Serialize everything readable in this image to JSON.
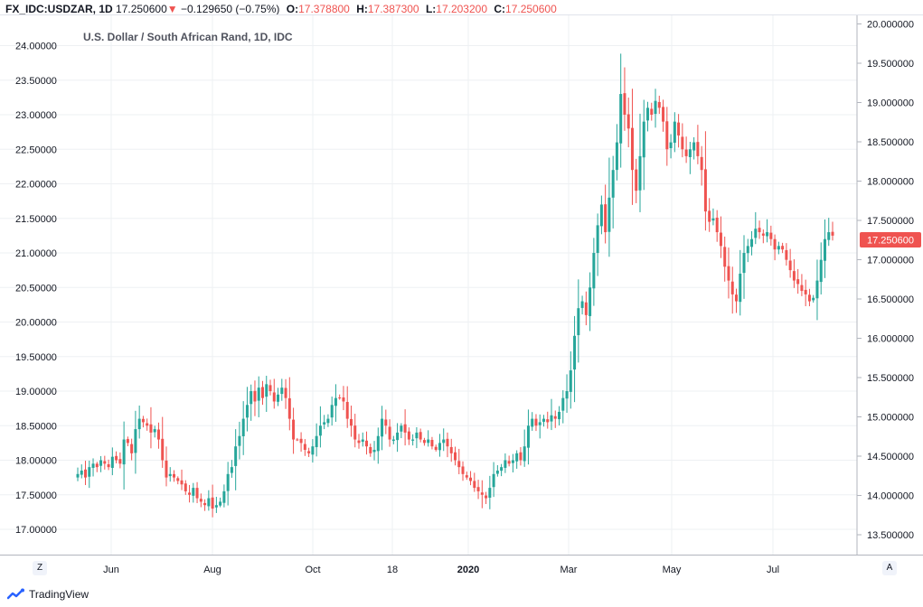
{
  "header": {
    "symbol": "FX_IDC:USDZAR, 1D",
    "last": "17.250600",
    "arrow": "▼",
    "change": "−0.129650 (−0.75%)",
    "o_label": "O:",
    "o_value": "17.378800",
    "h_label": "H:",
    "h_value": "17.387300",
    "l_label": "L:",
    "l_value": "17.203200",
    "c_label": "C:",
    "c_value": "17.250600"
  },
  "chart_title": "U.S. Dollar / South African Rand, 1D, IDC",
  "brand": "TradingView",
  "corner_left": "Z",
  "corner_right": "A",
  "colors": {
    "up": "#26a69a",
    "down": "#ef5350",
    "grid": "#eef0f3",
    "axis": "#b2b5be"
  },
  "chart_data": {
    "type": "candlestick",
    "title": "U.S. Dollar / South African Rand, 1D, IDC",
    "x_ticks": [
      "Jun",
      "Aug",
      "Oct",
      "18",
      "2020",
      "Mar",
      "May",
      "Jul"
    ],
    "x_ticks_bold": [
      "2020"
    ],
    "left_axis": {
      "ylim": [
        16.7,
        24.5
      ],
      "ticks": [
        "24.00000",
        "23.50000",
        "23.00000",
        "22.50000",
        "22.00000",
        "21.50000",
        "21.00000",
        "20.50000",
        "20.00000",
        "19.50000",
        "19.00000",
        "18.50000",
        "18.00000",
        "17.50000",
        "17.00000"
      ]
    },
    "right_axis": {
      "ylim": [
        13.3,
        20.0
      ],
      "ticks": [
        "20.000000",
        "19.500000",
        "19.000000",
        "18.500000",
        "18.000000",
        "17.500000",
        "17.000000",
        "16.500000",
        "16.000000",
        "15.500000",
        "15.000000",
        "14.500000",
        "14.000000",
        "13.500000"
      ],
      "last_price": "17.250600"
    },
    "grid": true,
    "approx_closes_left_scale": [
      17.8,
      17.85,
      17.75,
      17.9,
      17.95,
      17.9,
      18.0,
      17.95,
      17.9,
      18.05,
      18.0,
      17.95,
      18.3,
      18.25,
      18.1,
      18.45,
      18.6,
      18.55,
      18.5,
      18.4,
      18.45,
      18.3,
      18.0,
      17.75,
      17.8,
      17.75,
      17.7,
      17.65,
      17.55,
      17.5,
      17.6,
      17.45,
      17.4,
      17.35,
      17.45,
      17.3,
      17.35,
      17.4,
      17.55,
      17.8,
      17.9,
      18.2,
      18.35,
      18.6,
      18.8,
      19.0,
      18.85,
      19.05,
      18.9,
      19.1,
      19.0,
      18.85,
      18.95,
      19.05,
      18.9,
      18.6,
      18.3,
      18.3,
      18.25,
      18.15,
      18.1,
      18.2,
      18.35,
      18.5,
      18.55,
      18.6,
      18.8,
      18.9,
      18.9,
      18.85,
      18.6,
      18.5,
      18.3,
      18.25,
      18.3,
      18.2,
      18.1,
      18.15,
      18.35,
      18.6,
      18.5,
      18.3,
      18.3,
      18.4,
      18.5,
      18.4,
      18.3,
      18.3,
      18.4,
      18.3,
      18.25,
      18.3,
      18.2,
      18.15,
      18.25,
      18.3,
      18.2,
      18.1,
      18.0,
      17.9,
      17.8,
      17.75,
      17.7,
      17.6,
      17.55,
      17.5,
      17.45,
      17.6,
      17.8,
      17.85,
      17.9,
      18.0,
      17.95,
      18.0,
      18.1,
      18.0,
      18.2,
      18.5,
      18.6,
      18.5,
      18.55,
      18.6,
      18.55,
      18.65,
      18.6,
      18.7,
      18.9,
      19.0,
      19.3,
      19.8,
      20.2,
      20.3,
      20.1,
      20.5,
      21.0,
      21.4,
      21.7,
      21.3,
      21.8,
      22.2,
      22.6,
      23.3,
      23.0,
      22.8,
      22.2,
      21.9,
      22.4,
      22.9,
      23.1,
      23.0,
      23.2,
      23.1,
      22.9,
      22.5,
      22.6,
      22.9,
      22.7,
      22.5,
      22.4,
      22.5,
      22.6,
      22.4,
      22.2,
      21.6,
      21.45,
      21.5,
      21.3,
      21.1,
      20.8,
      20.6,
      20.4,
      20.3,
      20.7,
      21.0,
      21.1,
      21.2,
      21.35,
      21.3,
      21.25,
      21.3,
      21.2,
      21.05,
      21.1,
      21.05,
      20.9,
      20.75,
      20.6,
      20.55,
      20.45,
      20.4,
      20.3,
      20.35,
      20.6,
      20.9,
      21.2,
      21.3,
      21.25
    ]
  }
}
